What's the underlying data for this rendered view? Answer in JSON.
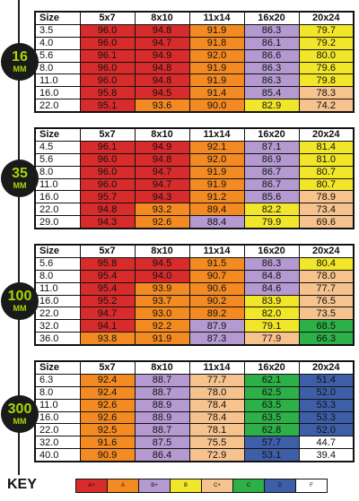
{
  "grade_colors": {
    "A+": "#d82b2b",
    "A": "#f38a22",
    "B+": "#b59ad1",
    "B": "#f2e62a",
    "C+": "#f6c28e",
    "C": "#2db048",
    "D": "#3e5fa8",
    "F": "#ffffff"
  },
  "sections": [
    {
      "lens": {
        "num": "16",
        "unit": "MM"
      },
      "headers": [
        "Size",
        "5x7",
        "8x10",
        "11x14",
        "16x20",
        "20x24"
      ],
      "rows": [
        {
          "size": "3.5",
          "cells": [
            [
              "96.0",
              "A+"
            ],
            [
              "94.8",
              "A+"
            ],
            [
              "91.9",
              "A"
            ],
            [
              "86.3",
              "B+"
            ],
            [
              "79.7",
              "B"
            ]
          ]
        },
        {
          "size": "4.0",
          "cells": [
            [
              "96.0",
              "A+"
            ],
            [
              "94.7",
              "A+"
            ],
            [
              "91.8",
              "A"
            ],
            [
              "86.1",
              "B+"
            ],
            [
              "79.2",
              "B"
            ]
          ]
        },
        {
          "size": "5.6",
          "cells": [
            [
              "96.1",
              "A+"
            ],
            [
              "94.9",
              "A+"
            ],
            [
              "92.0",
              "A"
            ],
            [
              "86.6",
              "B+"
            ],
            [
              "80.0",
              "B"
            ]
          ]
        },
        {
          "size": "8.0",
          "cells": [
            [
              "96.0",
              "A+"
            ],
            [
              "94.8",
              "A+"
            ],
            [
              "91.9",
              "A"
            ],
            [
              "86.3",
              "B+"
            ],
            [
              "79.6",
              "B"
            ]
          ]
        },
        {
          "size": "11.0",
          "cells": [
            [
              "96.0",
              "A+"
            ],
            [
              "94.8",
              "A+"
            ],
            [
              "91.9",
              "A"
            ],
            [
              "86.3",
              "B+"
            ],
            [
              "79.8",
              "B"
            ]
          ]
        },
        {
          "size": "16.0",
          "cells": [
            [
              "95.8",
              "A+"
            ],
            [
              "94.5",
              "A+"
            ],
            [
              "91.4",
              "A"
            ],
            [
              "85.4",
              "B+"
            ],
            [
              "78.3",
              "C+"
            ]
          ]
        },
        {
          "size": "22.0",
          "cells": [
            [
              "95.1",
              "A+"
            ],
            [
              "93.6",
              "A"
            ],
            [
              "90.0",
              "A"
            ],
            [
              "82.9",
              "B"
            ],
            [
              "74.2",
              "C+"
            ]
          ]
        }
      ]
    },
    {
      "lens": {
        "num": "35",
        "unit": "MM"
      },
      "headers": [
        "Size",
        "5x7",
        "8x10",
        "11x14",
        "16x20",
        "20x24"
      ],
      "rows": [
        {
          "size": "4.5",
          "cells": [
            [
              "96.1",
              "A+"
            ],
            [
              "94.9",
              "A+"
            ],
            [
              "92.1",
              "A"
            ],
            [
              "87.1",
              "B+"
            ],
            [
              "81.4",
              "B"
            ]
          ]
        },
        {
          "size": "5.6",
          "cells": [
            [
              "96.0",
              "A+"
            ],
            [
              "94.8",
              "A+"
            ],
            [
              "92.0",
              "A"
            ],
            [
              "86.9",
              "B+"
            ],
            [
              "81.0",
              "B"
            ]
          ]
        },
        {
          "size": "8.0",
          "cells": [
            [
              "96.0",
              "A+"
            ],
            [
              "94.7",
              "A+"
            ],
            [
              "91.9",
              "A"
            ],
            [
              "86.7",
              "B+"
            ],
            [
              "80.7",
              "B"
            ]
          ]
        },
        {
          "size": "11.0",
          "cells": [
            [
              "96.0",
              "A+"
            ],
            [
              "94.7",
              "A+"
            ],
            [
              "91.9",
              "A"
            ],
            [
              "86.7",
              "B+"
            ],
            [
              "80.7",
              "B"
            ]
          ]
        },
        {
          "size": "16.0",
          "cells": [
            [
              "95.7",
              "A+"
            ],
            [
              "94.3",
              "A+"
            ],
            [
              "91.2",
              "A"
            ],
            [
              "85.6",
              "B+"
            ],
            [
              "78.9",
              "C+"
            ]
          ]
        },
        {
          "size": "22.0",
          "cells": [
            [
              "94.8",
              "A+"
            ],
            [
              "93.2",
              "A"
            ],
            [
              "89.4",
              "A"
            ],
            [
              "82.2",
              "B"
            ],
            [
              "73.4",
              "C+"
            ]
          ]
        },
        {
          "size": "29.0",
          "cells": [
            [
              "94.3",
              "A+"
            ],
            [
              "92.6",
              "A"
            ],
            [
              "88.4",
              "B+"
            ],
            [
              "79.9",
              "B"
            ],
            [
              "69.6",
              "C+"
            ]
          ]
        }
      ]
    },
    {
      "lens": {
        "num": "100",
        "unit": "MM"
      },
      "headers": [
        "Size",
        "5x7",
        "8x10",
        "11x14",
        "16x20",
        "20x24"
      ],
      "rows": [
        {
          "size": "5.6",
          "cells": [
            [
              "95.8",
              "A+"
            ],
            [
              "94.5",
              "A+"
            ],
            [
              "91.5",
              "A"
            ],
            [
              "86.3",
              "B+"
            ],
            [
              "80.4",
              "B"
            ]
          ]
        },
        {
          "size": "8.0",
          "cells": [
            [
              "95.4",
              "A+"
            ],
            [
              "94.0",
              "A+"
            ],
            [
              "90.7",
              "A"
            ],
            [
              "84.8",
              "B+"
            ],
            [
              "78.0",
              "C+"
            ]
          ]
        },
        {
          "size": "11.0",
          "cells": [
            [
              "95.4",
              "A+"
            ],
            [
              "93.9",
              "A"
            ],
            [
              "90.6",
              "A"
            ],
            [
              "84.6",
              "B+"
            ],
            [
              "77.7",
              "C+"
            ]
          ]
        },
        {
          "size": "16.0",
          "cells": [
            [
              "95.2",
              "A+"
            ],
            [
              "93.7",
              "A"
            ],
            [
              "90.2",
              "A"
            ],
            [
              "83.9",
              "B"
            ],
            [
              "76.5",
              "C+"
            ]
          ]
        },
        {
          "size": "22.0",
          "cells": [
            [
              "94.7",
              "A+"
            ],
            [
              "93.0",
              "A"
            ],
            [
              "89.2",
              "A"
            ],
            [
              "82.0",
              "B"
            ],
            [
              "73.5",
              "C+"
            ]
          ]
        },
        {
          "size": "32.0",
          "cells": [
            [
              "94.1",
              "A+"
            ],
            [
              "92.2",
              "A"
            ],
            [
              "87.9",
              "B+"
            ],
            [
              "79.1",
              "B"
            ],
            [
              "68.5",
              "C"
            ]
          ]
        },
        {
          "size": "36.0",
          "cells": [
            [
              "93.8",
              "A"
            ],
            [
              "91.9",
              "A"
            ],
            [
              "87.3",
              "B+"
            ],
            [
              "77.9",
              "C+"
            ],
            [
              "66.3",
              "C"
            ]
          ]
        }
      ]
    },
    {
      "lens": {
        "num": "300",
        "unit": "MM"
      },
      "headers": [
        "Size",
        "5x7",
        "8x10",
        "11x14",
        "16x20",
        "20x24"
      ],
      "rows": [
        {
          "size": "6.3",
          "cells": [
            [
              "92.4",
              "A"
            ],
            [
              "88.7",
              "B+"
            ],
            [
              "77.7",
              "C+"
            ],
            [
              "62.1",
              "C"
            ],
            [
              "51.4",
              "D"
            ]
          ]
        },
        {
          "size": "8.0",
          "cells": [
            [
              "92.4",
              "A"
            ],
            [
              "88.7",
              "B+"
            ],
            [
              "78.0",
              "C+"
            ],
            [
              "62.5",
              "C"
            ],
            [
              "52.0",
              "D"
            ]
          ]
        },
        {
          "size": "11.0",
          "cells": [
            [
              "92.6",
              "A"
            ],
            [
              "88.9",
              "B+"
            ],
            [
              "78.4",
              "C+"
            ],
            [
              "63.5",
              "C"
            ],
            [
              "53.3",
              "D"
            ]
          ]
        },
        {
          "size": "16.0",
          "cells": [
            [
              "92.6",
              "A"
            ],
            [
              "88.9",
              "B+"
            ],
            [
              "78.4",
              "C+"
            ],
            [
              "63.5",
              "C"
            ],
            [
              "53.3",
              "D"
            ]
          ]
        },
        {
          "size": "22.0",
          "cells": [
            [
              "92.5",
              "A"
            ],
            [
              "88.7",
              "B+"
            ],
            [
              "78.1",
              "C+"
            ],
            [
              "62.8",
              "C"
            ],
            [
              "52.0",
              "D"
            ]
          ]
        },
        {
          "size": "32.0",
          "cells": [
            [
              "91.6",
              "A"
            ],
            [
              "87.5",
              "B+"
            ],
            [
              "75.5",
              "C+"
            ],
            [
              "57.7",
              "D"
            ],
            [
              "44.7",
              "F"
            ]
          ]
        },
        {
          "size": "40.0",
          "cells": [
            [
              "90.9",
              "A"
            ],
            [
              "86.4",
              "B+"
            ],
            [
              "72.9",
              "C+"
            ],
            [
              "53.1",
              "D"
            ],
            [
              "39.4",
              "F"
            ]
          ]
        }
      ]
    }
  ],
  "key": {
    "label": "KEY",
    "grades": [
      "A+",
      "A",
      "B+",
      "B",
      "C+",
      "C",
      "D",
      "F"
    ]
  }
}
